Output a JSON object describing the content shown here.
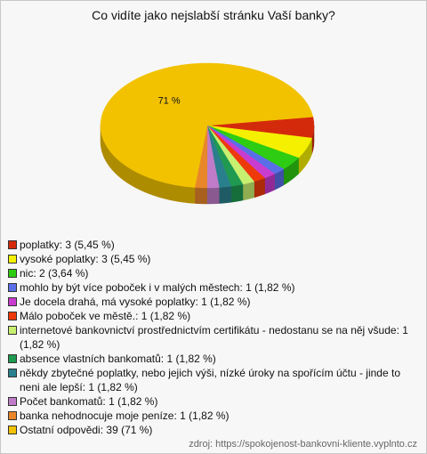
{
  "chart_data": {
    "type": "pie",
    "title": "Co vidíte jako nejslabší stránku Vaší banky?",
    "categories": [
      "poplatky",
      "vysoké poplatky",
      "nic",
      "mohlo by být více poboček i v malých městech",
      "Je docela drahá, má vysoké poplatky",
      "Málo poboček ve městě.",
      "internetové bankovnictví prostřednictvím certifikátu - nedostanu se na něj všude",
      "absence vlastních bankomatů",
      "někdy zbytečné poplatky, nebo jejich výši, nízké úroky na spořícím účtu - jinde to neni ale lepší",
      "Počet bankomatů",
      "banka nehodnocuje moje peníze",
      "Ostatní odpovědi"
    ],
    "values": [
      3,
      3,
      2,
      1,
      1,
      1,
      1,
      1,
      1,
      1,
      1,
      39
    ],
    "value_labels": [
      "3 (5,45 %)",
      "3 (5,45 %)",
      "2 (3,64 %)",
      "1 (1,82 %)",
      "1 (1,82 %)",
      "1 (1,82 %)",
      "1 (1,82 %)",
      "1 (1,82 %)",
      "1 (1,82 %)",
      "1 (1,82 %)",
      "1 (1,82 %)",
      "39 (71 %)"
    ],
    "slice_labels": [
      null,
      null,
      null,
      null,
      null,
      null,
      null,
      null,
      null,
      null,
      null,
      "71 %"
    ],
    "colors": [
      "#d42a0c",
      "#f5f000",
      "#2ecc12",
      "#5a6ee8",
      "#c83cd0",
      "#ee3a0a",
      "#c8f070",
      "#1f9a50",
      "#2a7f8c",
      "#c07cc8",
      "#e8862a",
      "#f2c200"
    ],
    "source": "zdroj: https://spokojenost-bankovni-kliente.vyplnto.cz"
  }
}
